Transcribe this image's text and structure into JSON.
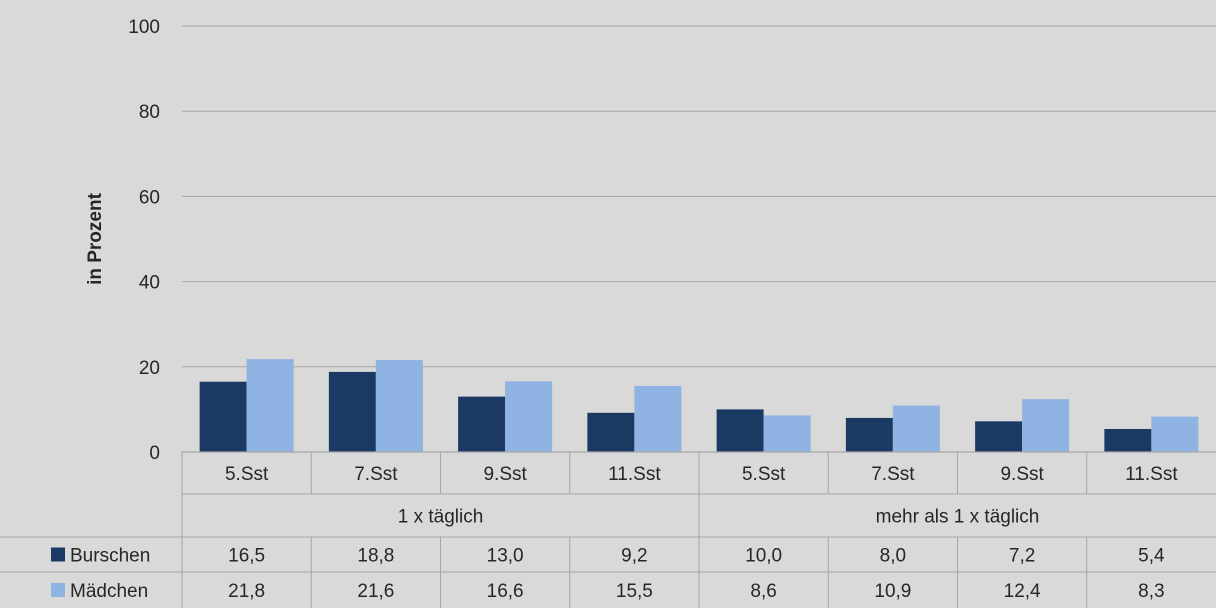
{
  "chart_data": {
    "type": "bar",
    "title": "",
    "xlabel": "",
    "ylabel": "in Prozent",
    "ylim": [
      0,
      100
    ],
    "yticks": [
      "0",
      "20",
      "40",
      "60",
      "80",
      "100"
    ],
    "grid": true,
    "legend": "table-left",
    "categories": [
      "5.Sst",
      "7.Sst",
      "9.Sst",
      "11.Sst",
      "5.Sst",
      "7.Sst",
      "9.Sst",
      "11.Sst"
    ],
    "groups": [
      {
        "label": "1 x täglich",
        "count": 4
      },
      {
        "label": "mehr als 1 x täglich",
        "count": 4
      }
    ],
    "series": [
      {
        "name": "Burschen",
        "color": "#1b3a63",
        "values": [
          16.5,
          18.8,
          13.0,
          9.2,
          10.0,
          8.0,
          7.2,
          5.4
        ],
        "labels": [
          "16,5",
          "18,8",
          "13,0",
          "9,2",
          "10,0",
          "8,0",
          "7,2",
          "5,4"
        ]
      },
      {
        "name": "Mädchen",
        "color": "#8fb3e2",
        "values": [
          21.8,
          21.6,
          16.6,
          15.5,
          8.6,
          10.9,
          12.4,
          8.3
        ],
        "labels": [
          "21,8",
          "21,6",
          "16,6",
          "15,5",
          "8,6",
          "10,9",
          "12,4",
          "8,3"
        ]
      }
    ]
  }
}
